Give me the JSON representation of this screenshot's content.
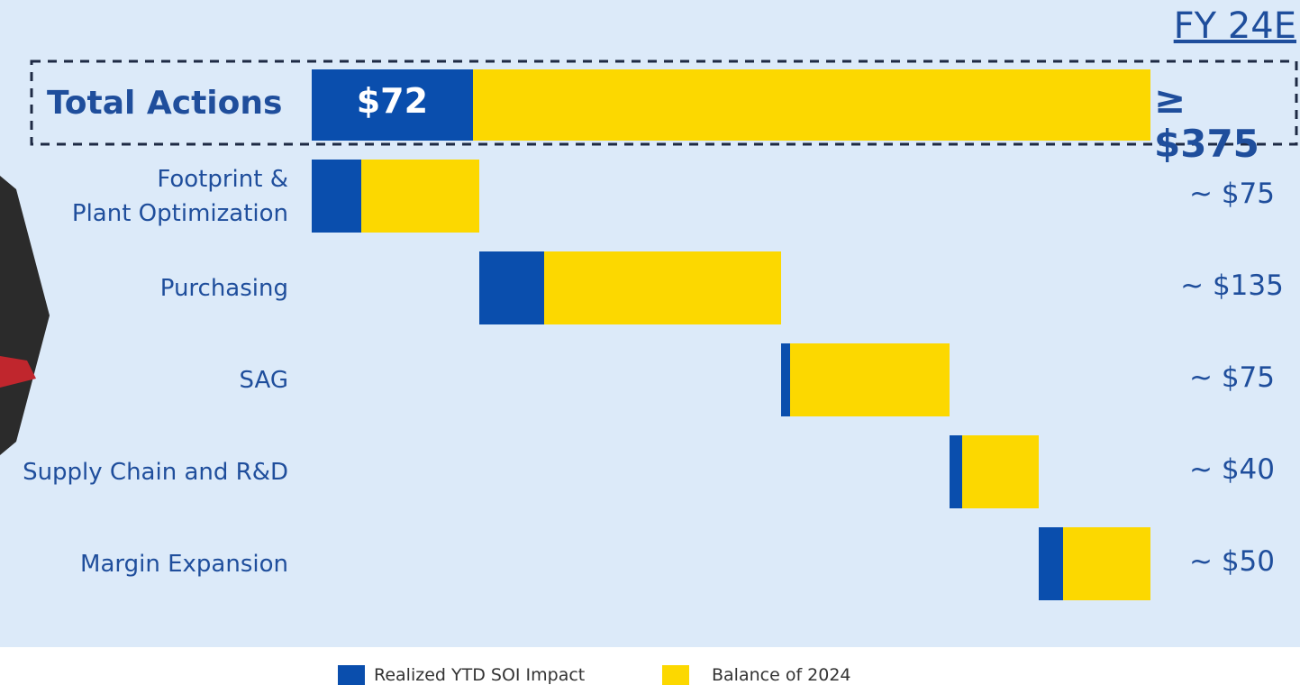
{
  "chart_data": {
    "type": "waterfall",
    "title": "FY 24E",
    "total": {
      "label": "Total Actions",
      "realized": 72,
      "realized_label": "$72",
      "balance": 303,
      "value": 375,
      "value_label": "≥ $375"
    },
    "categories": [
      "Footprint &\nPlant Optimization",
      "Purchasing",
      "SAG",
      "Supply Chain and R&D",
      "Margin Expansion"
    ],
    "series": [
      {
        "name": "Realized YTD SOI Impact",
        "color": "#0a4ead",
        "values": [
          22,
          29,
          4,
          6,
          11
        ]
      },
      {
        "name": "Balance of 2024",
        "color": "#fcd800",
        "values": [
          53,
          106,
          71,
          34,
          39
        ]
      }
    ],
    "totals": [
      75,
      135,
      75,
      40,
      50
    ],
    "total_labels": [
      "~ $75",
      "~ $135",
      "~ $75",
      "~ $40",
      "~ $50"
    ]
  }
}
